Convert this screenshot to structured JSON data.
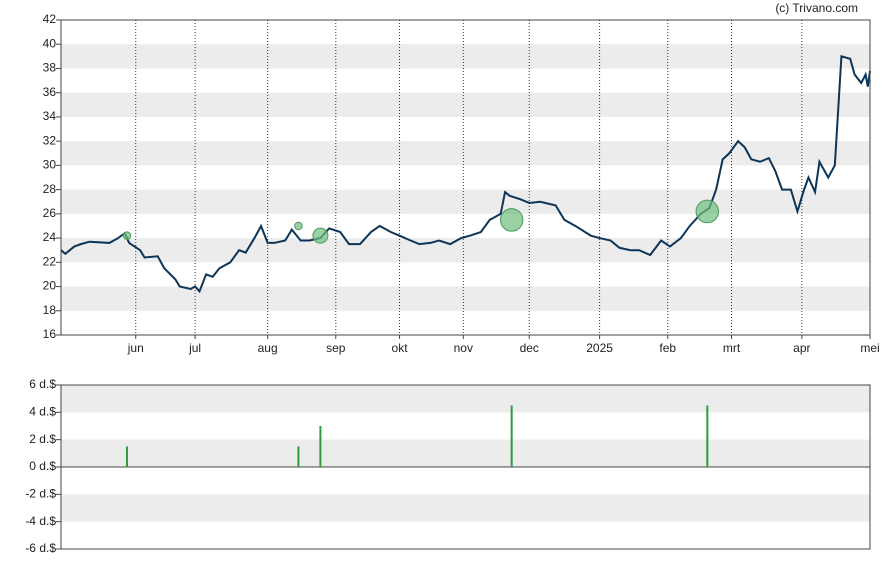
{
  "chart_data": [
    {
      "type": "line",
      "annotation": "(c) Trivano.com",
      "color": "#0d3557",
      "x": [
        0,
        2,
        6,
        9,
        13,
        22,
        26,
        29,
        31,
        36,
        38,
        44,
        47,
        52,
        54,
        59,
        61,
        63,
        66,
        69,
        72,
        77,
        81,
        84,
        88,
        91,
        94,
        97,
        102,
        105,
        109,
        113,
        118,
        122,
        127,
        131,
        136,
        141,
        145,
        150,
        154,
        159,
        163,
        168,
        172,
        177,
        182,
        186,
        191,
        195,
        200,
        202,
        204,
        209,
        213,
        218,
        225,
        229,
        234,
        241,
        245,
        250,
        254,
        259,
        263,
        268,
        273,
        277,
        282,
        286,
        291,
        295,
        298,
        301,
        304,
        308,
        311,
        314,
        318,
        322,
        325,
        328,
        332,
        335,
        338,
        340,
        343,
        345,
        349,
        352,
        355,
        359,
        361,
        364,
        366,
        367,
        368
      ],
      "values": [
        23.0,
        22.7,
        23.3,
        23.5,
        23.7,
        23.6,
        24.0,
        24.4,
        23.6,
        23.0,
        22.4,
        22.5,
        21.5,
        20.6,
        20.0,
        19.8,
        20.0,
        19.6,
        21.0,
        20.8,
        21.5,
        22.0,
        23.0,
        22.8,
        24.0,
        25.0,
        23.6,
        23.6,
        23.8,
        24.7,
        23.8,
        23.8,
        24.0,
        24.8,
        24.5,
        23.5,
        23.5,
        24.5,
        25.0,
        24.5,
        24.2,
        23.8,
        23.5,
        23.6,
        23.8,
        23.5,
        24.0,
        24.2,
        24.5,
        25.5,
        26.0,
        27.8,
        27.5,
        27.2,
        26.9,
        27.0,
        26.7,
        25.5,
        25.0,
        24.2,
        24.0,
        23.8,
        23.2,
        23.0,
        23.0,
        22.6,
        23.8,
        23.3,
        24.0,
        25.0,
        26.0,
        26.5,
        28.0,
        30.5,
        31.0,
        32.0,
        31.5,
        30.5,
        30.3,
        30.6,
        29.5,
        28.0,
        28.0,
        26.2,
        28.0,
        29.0,
        27.8,
        30.3,
        29.0,
        30.0,
        39.0,
        38.8,
        37.5,
        36.8,
        37.5,
        36.5,
        37.8
      ],
      "bubbles": {
        "color": "#6fbf7f",
        "x": [
          30,
          108,
          118,
          205,
          294
        ],
        "values": [
          24.2,
          25.0,
          24.2,
          25.5,
          26.2
        ],
        "sizes": [
          1.5,
          1.5,
          3.0,
          4.5,
          4.5
        ]
      },
      "xlim": [
        0,
        368
      ],
      "xticks": [
        {
          "value": 34,
          "label": "jun"
        },
        {
          "value": 61,
          "label": "jul"
        },
        {
          "value": 94,
          "label": "aug"
        },
        {
          "value": 125,
          "label": "sep"
        },
        {
          "value": 154,
          "label": "okt"
        },
        {
          "value": 183,
          "label": "nov"
        },
        {
          "value": 213,
          "label": "dec"
        },
        {
          "value": 245,
          "label": "2025"
        },
        {
          "value": 276,
          "label": "feb"
        },
        {
          "value": 305,
          "label": "mrt"
        },
        {
          "value": 337,
          "label": "apr"
        },
        {
          "value": 368,
          "label": "mei"
        }
      ],
      "ylim": [
        16,
        42
      ],
      "yticks": [
        16,
        18,
        20,
        22,
        24,
        26,
        28,
        30,
        32,
        34,
        36,
        38,
        40,
        42
      ],
      "grid": true
    },
    {
      "type": "bar",
      "color": "#2e9a3e",
      "x": [
        30,
        108,
        118,
        205,
        294
      ],
      "values": [
        1.5,
        1.5,
        3.0,
        4.5,
        4.5
      ],
      "xlim": [
        0,
        368
      ],
      "ylim": [
        -6,
        6
      ],
      "yticks": [
        {
          "value": -6,
          "label": "-6 d.$"
        },
        {
          "value": -4,
          "label": "-4 d.$"
        },
        {
          "value": -2,
          "label": "-2 d.$"
        },
        {
          "value": 0,
          "label": "0 d.$"
        },
        {
          "value": 2,
          "label": "2 d.$"
        },
        {
          "value": 4,
          "label": "4 d.$"
        },
        {
          "value": 6,
          "label": "6 d.$"
        }
      ],
      "grid": true
    }
  ]
}
